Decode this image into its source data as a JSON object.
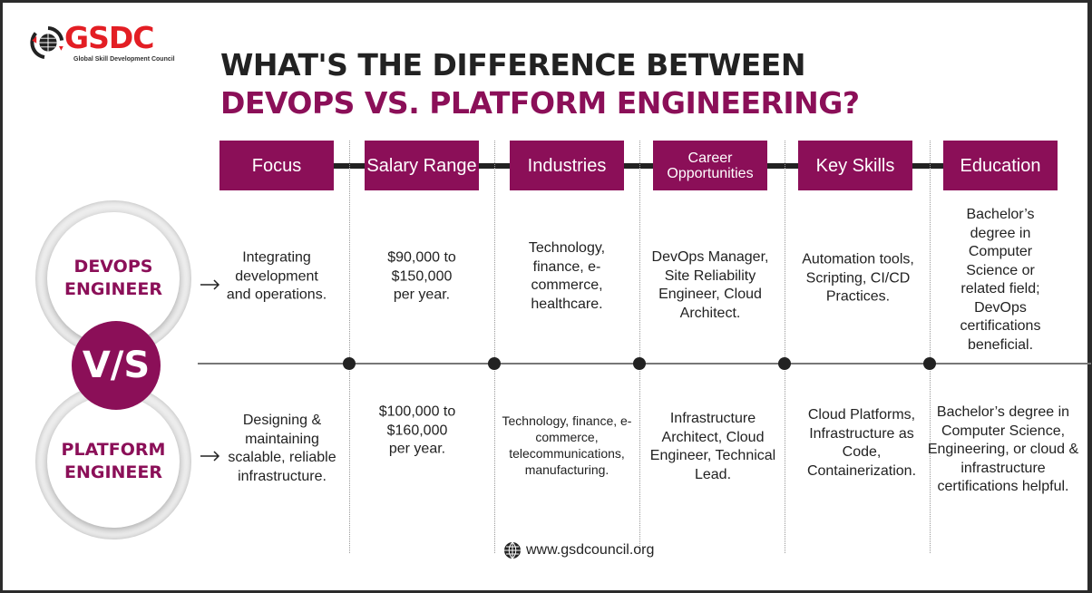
{
  "logo": {
    "name": "GSDC",
    "tagline": "Global Skill Development Council"
  },
  "title": {
    "line1": "WHAT'S THE DIFFERENCE BETWEEN",
    "line2": "DEVOPS VS. PLATFORM ENGINEERING?"
  },
  "colors": {
    "accent": "#8b0f58",
    "logo_red": "#e31e24"
  },
  "roles": {
    "top": "DEVOPS ENGINEER",
    "vs": "V/S",
    "bottom": "PLATFORM ENGINEER"
  },
  "columns": [
    {
      "header": "Focus",
      "devops": "Integrating development and operations.",
      "platform": "Designing & maintaining scalable, reliable infrastructure."
    },
    {
      "header": "Salary Range",
      "devops": "$90,000 to $150,000 per year.",
      "platform": "$100,000 to $160,000 per year."
    },
    {
      "header": "Industries",
      "devops": "Technology, finance, e-commerce, healthcare.",
      "platform": "Technology, finance, e-commerce, telecommunications, manufacturing."
    },
    {
      "header": "Career Opportunities",
      "devops": "DevOps Manager, Site Reliability Engineer, Cloud Architect.",
      "platform": "Infrastructure Architect, Cloud Engineer, Technical Lead."
    },
    {
      "header": "Key Skills",
      "devops": "Automation tools, Scripting, CI/CD Practices.",
      "platform": "Cloud Platforms, Infrastructure as Code, Containerization."
    },
    {
      "header": "Education",
      "devops": "Bachelor’s degree in Computer Science or related field; DevOps certifications beneficial.",
      "platform": "Bachelor’s degree in Computer Science, Engineering, or cloud & infrastructure certifications helpful."
    }
  ],
  "footer": {
    "website": "www.gsdcouncil.org",
    "icon": "globe-icon"
  }
}
